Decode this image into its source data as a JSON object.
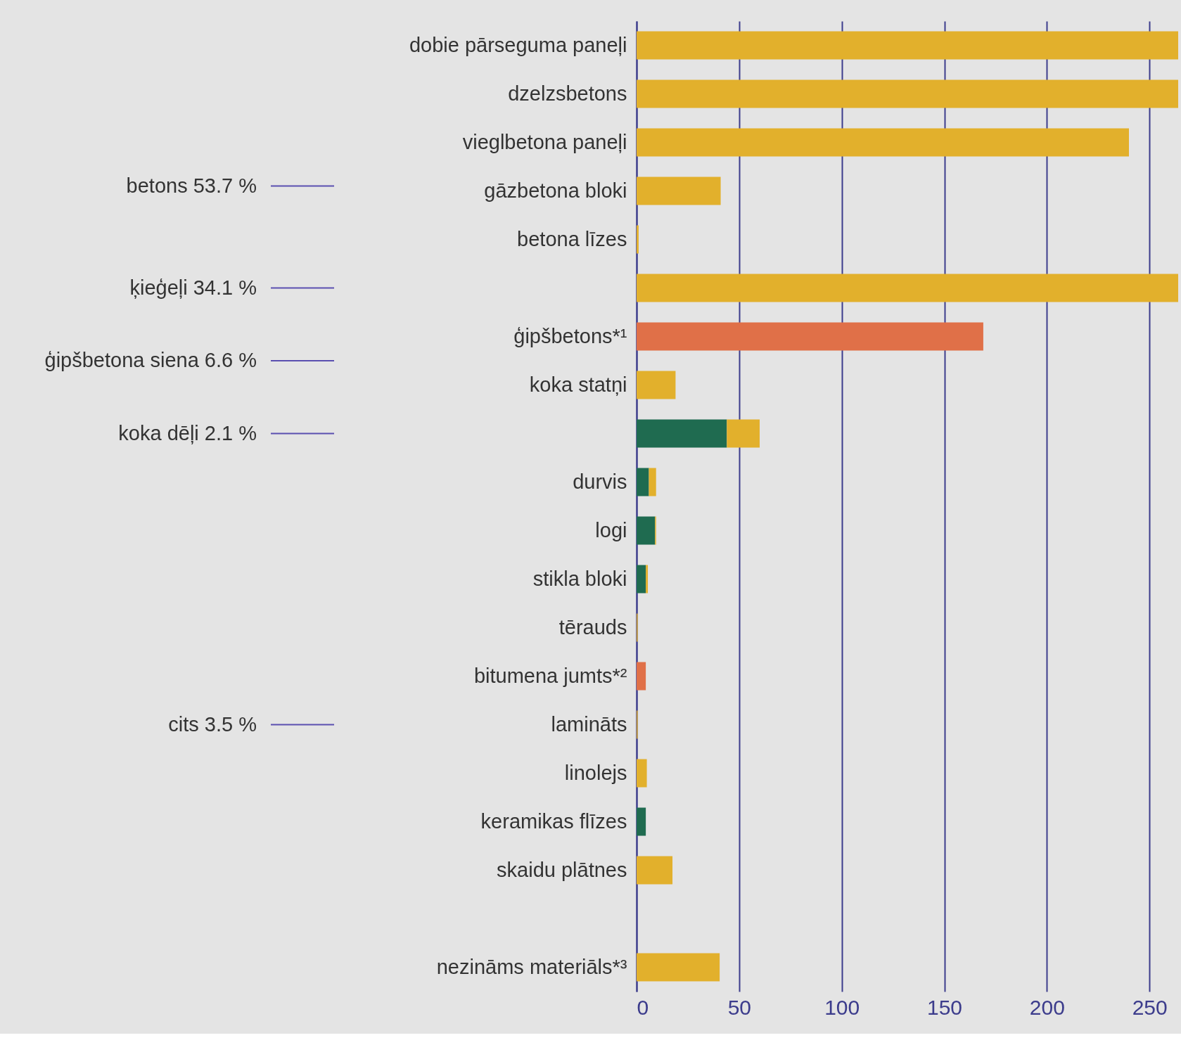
{
  "chart_data": {
    "type": "bar",
    "orientation": "horizontal",
    "stacked": true,
    "categories": [
      "dobie pārseguma paneļi",
      "dzelzsbetons",
      "vieglbetona paneļi",
      "gāzbetona bloki",
      "betona līzes",
      null,
      "ģipšbetons*¹",
      "koka statņi",
      null,
      "durvis",
      "logi",
      "stikla bloki",
      "tērauds",
      "bitumena jumts*²",
      "lamināts",
      "linolejs",
      "keramikas flīzes",
      "skaidu plātnes",
      null,
      "nezināms materiāls*³"
    ],
    "series": [
      {
        "color": "#1f6b50",
        "values": [
          null,
          null,
          null,
          null,
          null,
          null,
          null,
          null,
          44,
          6,
          9,
          4.5,
          null,
          null,
          null,
          null,
          4.5,
          null,
          null,
          null
        ]
      },
      {
        "color": "#e07048",
        "values": [
          null,
          null,
          null,
          null,
          null,
          null,
          169,
          null,
          null,
          null,
          null,
          null,
          null,
          4.5,
          null,
          null,
          null,
          null,
          null,
          null
        ]
      },
      {
        "color": "#e2b02c",
        "values": [
          264,
          264,
          240,
          41,
          1,
          264,
          null,
          19,
          16,
          3.5,
          0.5,
          1,
          0.5,
          null,
          0.5,
          5,
          null,
          17.5,
          null,
          40.5
        ]
      }
    ],
    "xlim": [
      0,
      264
    ],
    "xticks": [
      0,
      50,
      100,
      150,
      200,
      250
    ],
    "grid": "x",
    "legend": false,
    "annotations": [
      "betons 53.7 %",
      "ķieģeļi 34.1 %",
      "ģipšbetona siena 6.6 %",
      "koka dēļi 2.1 %",
      "cits 3.5 %"
    ]
  }
}
